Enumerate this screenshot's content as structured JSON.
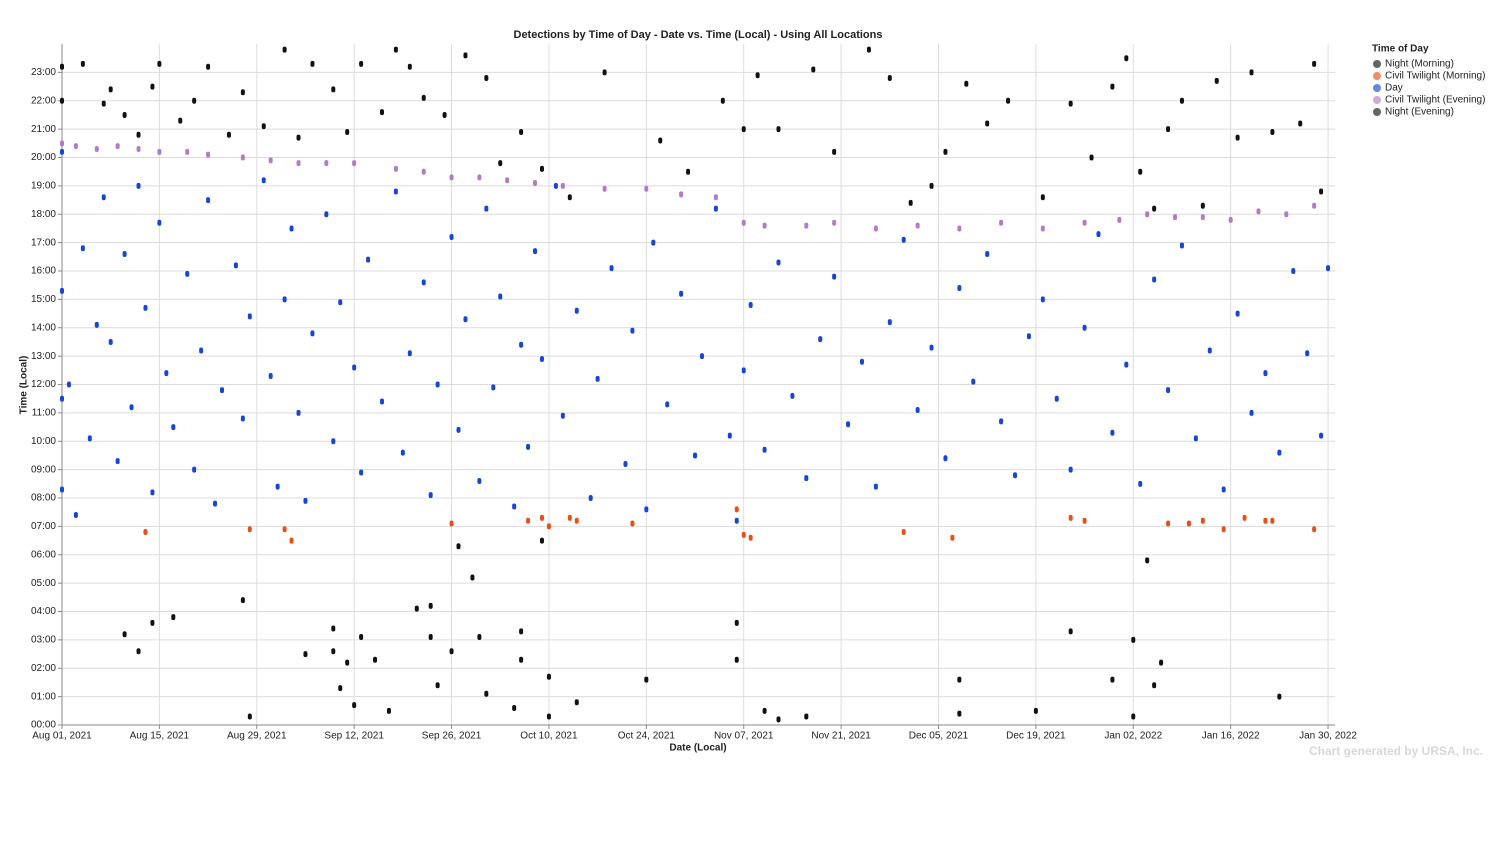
{
  "chart_data": {
    "type": "scatter",
    "title": "Detections by Time of Day - Date vs. Time (Local) - Using All Locations",
    "x_label": "Date (Local)",
    "y_label": "Time (Local)",
    "legend_title": "Time of Day",
    "legend": "right",
    "footer": "Chart generated by URSA, Inc.",
    "grid": true,
    "xlim": [
      "2021-08-01",
      "2022-01-31"
    ],
    "xticks": [
      {
        "value": "2021-08-01",
        "label": "Aug 01, 2021"
      },
      {
        "value": "2021-08-15",
        "label": "Aug 15, 2021"
      },
      {
        "value": "2021-08-29",
        "label": "Aug 29, 2021"
      },
      {
        "value": "2021-09-12",
        "label": "Sep 12, 2021"
      },
      {
        "value": "2021-09-26",
        "label": "Sep 26, 2021"
      },
      {
        "value": "2021-10-10",
        "label": "Oct 10, 2021"
      },
      {
        "value": "2021-10-24",
        "label": "Oct 24, 2021"
      },
      {
        "value": "2021-11-07",
        "label": "Nov 07, 2021"
      },
      {
        "value": "2021-11-21",
        "label": "Nov 21, 2021"
      },
      {
        "value": "2021-12-05",
        "label": "Dec 05, 2021"
      },
      {
        "value": "2021-12-19",
        "label": "Dec 19, 2021"
      },
      {
        "value": "2022-01-02",
        "label": "Jan 02, 2022"
      },
      {
        "value": "2022-01-16",
        "label": "Jan 16, 2022"
      },
      {
        "value": "2022-01-30",
        "label": "Jan 30, 2022"
      }
    ],
    "ylim": [
      0,
      24
    ],
    "yticks": [
      {
        "value": 0,
        "label": "00:00"
      },
      {
        "value": 1,
        "label": "01:00"
      },
      {
        "value": 2,
        "label": "02:00"
      },
      {
        "value": 3,
        "label": "03:00"
      },
      {
        "value": 4,
        "label": "04:00"
      },
      {
        "value": 5,
        "label": "05:00"
      },
      {
        "value": 6,
        "label": "06:00"
      },
      {
        "value": 7,
        "label": "07:00"
      },
      {
        "value": 8,
        "label": "08:00"
      },
      {
        "value": 9,
        "label": "09:00"
      },
      {
        "value": 10,
        "label": "10:00"
      },
      {
        "value": 11,
        "label": "11:00"
      },
      {
        "value": 12,
        "label": "12:00"
      },
      {
        "value": 13,
        "label": "13:00"
      },
      {
        "value": 14,
        "label": "14:00"
      },
      {
        "value": 15,
        "label": "15:00"
      },
      {
        "value": 16,
        "label": "16:00"
      },
      {
        "value": 17,
        "label": "17:00"
      },
      {
        "value": 18,
        "label": "18:00"
      },
      {
        "value": 19,
        "label": "19:00"
      },
      {
        "value": 20,
        "label": "20:00"
      },
      {
        "value": 21,
        "label": "21:00"
      },
      {
        "value": 22,
        "label": "22:00"
      },
      {
        "value": 23,
        "label": "23:00"
      }
    ],
    "series": [
      {
        "name": "Night (Morning)",
        "color": "#111111",
        "x": [
          "2021-08-10",
          "2021-08-12",
          "2021-08-14",
          "2021-08-17",
          "2021-08-27",
          "2021-08-28",
          "2021-09-05",
          "2021-09-09",
          "2021-09-09",
          "2021-09-10",
          "2021-09-11",
          "2021-09-12",
          "2021-09-13",
          "2021-09-15",
          "2021-09-17",
          "2021-09-21",
          "2021-09-23",
          "2021-09-23",
          "2021-09-24",
          "2021-09-26",
          "2021-09-27",
          "2021-09-29",
          "2021-09-30",
          "2021-10-01",
          "2021-10-05",
          "2021-10-06",
          "2021-10-06",
          "2021-10-09",
          "2021-10-10",
          "2021-10-10",
          "2021-10-14",
          "2021-10-24",
          "2021-11-06",
          "2021-11-06",
          "2021-11-10",
          "2021-11-12",
          "2021-11-16",
          "2021-12-08",
          "2021-12-08",
          "2021-12-19",
          "2021-12-24",
          "2021-12-30",
          "2022-01-02",
          "2022-01-02",
          "2022-01-04",
          "2022-01-05",
          "2022-01-06",
          "2022-01-23"
        ],
        "values": [
          3.2,
          2.6,
          3.6,
          3.8,
          4.4,
          0.3,
          2.5,
          3.4,
          2.6,
          1.3,
          2.2,
          0.7,
          3.1,
          2.3,
          0.5,
          4.1,
          4.2,
          3.1,
          1.4,
          2.6,
          6.3,
          5.2,
          3.1,
          1.1,
          0.6,
          3.3,
          2.3,
          6.5,
          1.7,
          0.3,
          0.8,
          1.6,
          3.6,
          2.3,
          0.5,
          0.2,
          0.3,
          1.6,
          0.4,
          0.5,
          3.3,
          1.6,
          3.0,
          0.3,
          5.8,
          1.4,
          2.2,
          1.0
        ]
      },
      {
        "name": "Civil Twilight (Morning)",
        "color": "#e8501a",
        "x": [
          "2021-08-13",
          "2021-08-28",
          "2021-09-02",
          "2021-09-03",
          "2021-09-26",
          "2021-10-07",
          "2021-10-09",
          "2021-10-10",
          "2021-10-13",
          "2021-10-14",
          "2021-10-22",
          "2021-11-06",
          "2021-11-07",
          "2021-11-08",
          "2021-11-30",
          "2021-12-07",
          "2021-12-24",
          "2021-12-26",
          "2022-01-07",
          "2022-01-10",
          "2022-01-12",
          "2022-01-15",
          "2022-01-18",
          "2022-01-21",
          "2022-01-22",
          "2022-01-28"
        ],
        "values": [
          6.8,
          6.9,
          6.9,
          6.5,
          7.1,
          7.2,
          7.3,
          7.0,
          7.3,
          7.2,
          7.1,
          7.6,
          6.7,
          6.6,
          6.8,
          6.6,
          7.3,
          7.2,
          7.1,
          7.1,
          7.2,
          6.9,
          7.3,
          7.2,
          7.2,
          6.9
        ]
      },
      {
        "name": "Day",
        "color": "#1646d8",
        "x": [
          "2021-08-01",
          "2021-08-01",
          "2021-08-01",
          "2021-08-01",
          "2021-08-02",
          "2021-08-03",
          "2021-08-04",
          "2021-08-05",
          "2021-08-06",
          "2021-08-07",
          "2021-08-08",
          "2021-08-09",
          "2021-08-10",
          "2021-08-11",
          "2021-08-12",
          "2021-08-13",
          "2021-08-14",
          "2021-08-15",
          "2021-08-16",
          "2021-08-17",
          "2021-08-19",
          "2021-08-20",
          "2021-08-21",
          "2021-08-22",
          "2021-08-23",
          "2021-08-24",
          "2021-08-26",
          "2021-08-27",
          "2021-08-28",
          "2021-08-30",
          "2021-08-31",
          "2021-09-01",
          "2021-09-02",
          "2021-09-03",
          "2021-09-04",
          "2021-09-05",
          "2021-09-06",
          "2021-09-08",
          "2021-09-09",
          "2021-09-10",
          "2021-09-12",
          "2021-09-13",
          "2021-09-14",
          "2021-09-16",
          "2021-09-18",
          "2021-09-19",
          "2021-09-20",
          "2021-09-22",
          "2021-09-23",
          "2021-09-24",
          "2021-09-26",
          "2021-09-27",
          "2021-09-28",
          "2021-09-30",
          "2021-10-01",
          "2021-10-02",
          "2021-10-03",
          "2021-10-05",
          "2021-10-06",
          "2021-10-07",
          "2021-10-08",
          "2021-10-09",
          "2021-10-11",
          "2021-10-12",
          "2021-10-14",
          "2021-10-16",
          "2021-10-17",
          "2021-10-19",
          "2021-10-21",
          "2021-10-22",
          "2021-10-24",
          "2021-10-25",
          "2021-10-27",
          "2021-10-29",
          "2021-10-31",
          "2021-11-01",
          "2021-11-03",
          "2021-11-05",
          "2021-11-06",
          "2021-11-07",
          "2021-11-08",
          "2021-11-10",
          "2021-11-12",
          "2021-11-14",
          "2021-11-16",
          "2021-11-18",
          "2021-11-20",
          "2021-11-22",
          "2021-11-24",
          "2021-11-26",
          "2021-11-28",
          "2021-11-30",
          "2021-12-02",
          "2021-12-04",
          "2021-12-06",
          "2021-12-08",
          "2021-12-10",
          "2021-12-12",
          "2021-12-14",
          "2021-12-16",
          "2021-12-18",
          "2021-12-20",
          "2021-12-22",
          "2021-12-24",
          "2021-12-26",
          "2021-12-28",
          "2021-12-30",
          "2022-01-01",
          "2022-01-03",
          "2022-01-05",
          "2022-01-07",
          "2022-01-09",
          "2022-01-11",
          "2022-01-13",
          "2022-01-15",
          "2022-01-17",
          "2022-01-19",
          "2022-01-21",
          "2022-01-23",
          "2022-01-25",
          "2022-01-27",
          "2022-01-29",
          "2022-01-30"
        ],
        "values": [
          20.2,
          15.3,
          11.5,
          8.3,
          12.0,
          7.4,
          16.8,
          10.1,
          14.1,
          18.6,
          13.5,
          9.3,
          16.6,
          11.2,
          19.0,
          14.7,
          8.2,
          17.7,
          12.4,
          10.5,
          15.9,
          9.0,
          13.2,
          18.5,
          7.8,
          11.8,
          16.2,
          10.8,
          14.4,
          19.2,
          12.3,
          8.4,
          15.0,
          17.5,
          11.0,
          7.9,
          13.8,
          18.0,
          10.0,
          14.9,
          12.6,
          8.9,
          16.4,
          11.4,
          18.8,
          9.6,
          13.1,
          15.6,
          8.1,
          12.0,
          17.2,
          10.4,
          14.3,
          8.6,
          18.2,
          11.9,
          15.1,
          7.7,
          13.4,
          9.8,
          16.7,
          12.9,
          19.0,
          10.9,
          14.6,
          8.0,
          12.2,
          16.1,
          9.2,
          13.9,
          7.6,
          17.0,
          11.3,
          15.2,
          9.5,
          13.0,
          18.2,
          10.2,
          7.2,
          12.5,
          14.8,
          9.7,
          16.3,
          11.6,
          8.7,
          13.6,
          15.8,
          10.6,
          12.8,
          8.4,
          14.2,
          17.1,
          11.1,
          13.3,
          9.4,
          15.4,
          12.1,
          16.6,
          10.7,
          8.8,
          13.7,
          15.0,
          11.5,
          9.0,
          14.0,
          17.3,
          10.3,
          12.7,
          8.5,
          15.7,
          11.8,
          16.9,
          10.1,
          13.2,
          8.3,
          14.5,
          11.0,
          12.4,
          9.6,
          16.0,
          13.1,
          10.2,
          16.1
        ]
      },
      {
        "name": "Civil Twilight (Evening)",
        "color": "#b07cc6",
        "x": [
          "2021-08-01",
          "2021-08-03",
          "2021-08-06",
          "2021-08-09",
          "2021-08-12",
          "2021-08-15",
          "2021-08-19",
          "2021-08-22",
          "2021-08-27",
          "2021-08-31",
          "2021-09-04",
          "2021-09-08",
          "2021-09-12",
          "2021-09-18",
          "2021-09-22",
          "2021-09-26",
          "2021-09-30",
          "2021-10-04",
          "2021-10-08",
          "2021-10-12",
          "2021-10-18",
          "2021-10-24",
          "2021-10-29",
          "2021-11-03",
          "2021-11-07",
          "2021-11-10",
          "2021-11-16",
          "2021-11-20",
          "2021-11-26",
          "2021-12-02",
          "2021-12-08",
          "2021-12-14",
          "2021-12-20",
          "2021-12-26",
          "2021-12-31",
          "2022-01-04",
          "2022-01-08",
          "2022-01-12",
          "2022-01-16",
          "2022-01-20",
          "2022-01-24",
          "2022-01-28"
        ],
        "values": [
          20.5,
          20.4,
          20.3,
          20.4,
          20.3,
          20.2,
          20.2,
          20.1,
          20.0,
          19.9,
          19.8,
          19.8,
          19.8,
          19.6,
          19.5,
          19.3,
          19.3,
          19.2,
          19.1,
          19.0,
          18.9,
          18.9,
          18.7,
          18.6,
          17.7,
          17.6,
          17.6,
          17.7,
          17.5,
          17.6,
          17.5,
          17.7,
          17.5,
          17.7,
          17.8,
          18.0,
          17.9,
          17.9,
          17.8,
          18.1,
          18.0,
          18.3
        ]
      },
      {
        "name": "Night (Evening)",
        "color": "#111111",
        "x": [
          "2021-08-01",
          "2021-08-01",
          "2021-08-04",
          "2021-08-07",
          "2021-08-08",
          "2021-08-10",
          "2021-08-12",
          "2021-08-14",
          "2021-08-15",
          "2021-08-18",
          "2021-08-20",
          "2021-08-22",
          "2021-08-25",
          "2021-08-27",
          "2021-08-30",
          "2021-09-02",
          "2021-09-04",
          "2021-09-06",
          "2021-09-09",
          "2021-09-11",
          "2021-09-13",
          "2021-09-16",
          "2021-09-18",
          "2021-09-20",
          "2021-09-22",
          "2021-09-25",
          "2021-09-28",
          "2021-10-01",
          "2021-10-03",
          "2021-10-06",
          "2021-10-09",
          "2021-10-13",
          "2021-10-18",
          "2021-10-26",
          "2021-10-30",
          "2021-11-04",
          "2021-11-07",
          "2021-11-09",
          "2021-11-12",
          "2021-11-17",
          "2021-11-20",
          "2021-11-25",
          "2021-11-28",
          "2021-12-01",
          "2021-12-04",
          "2021-12-06",
          "2021-12-09",
          "2021-12-12",
          "2021-12-15",
          "2021-12-20",
          "2021-12-24",
          "2021-12-27",
          "2021-12-30",
          "2022-01-01",
          "2022-01-03",
          "2022-01-05",
          "2022-01-07",
          "2022-01-09",
          "2022-01-12",
          "2022-01-14",
          "2022-01-17",
          "2022-01-19",
          "2022-01-22",
          "2022-01-26",
          "2022-01-28",
          "2022-01-29"
        ],
        "values": [
          23.2,
          22.0,
          23.3,
          21.9,
          22.4,
          21.5,
          20.8,
          22.5,
          23.3,
          21.3,
          22.0,
          23.2,
          20.8,
          22.3,
          21.1,
          23.8,
          20.7,
          23.3,
          22.4,
          20.9,
          23.3,
          21.6,
          23.8,
          23.2,
          22.1,
          21.5,
          23.6,
          22.8,
          19.8,
          20.9,
          19.6,
          18.6,
          23.0,
          20.6,
          19.5,
          22.0,
          21.0,
          22.9,
          21.0,
          23.1,
          20.2,
          23.8,
          22.8,
          18.4,
          19.0,
          20.2,
          22.6,
          21.2,
          22.0,
          18.6,
          21.9,
          20.0,
          22.5,
          23.5,
          19.5,
          18.2,
          21.0,
          22.0,
          18.3,
          22.7,
          20.7,
          23.0,
          20.9,
          21.2,
          23.3,
          18.8
        ]
      }
    ]
  }
}
